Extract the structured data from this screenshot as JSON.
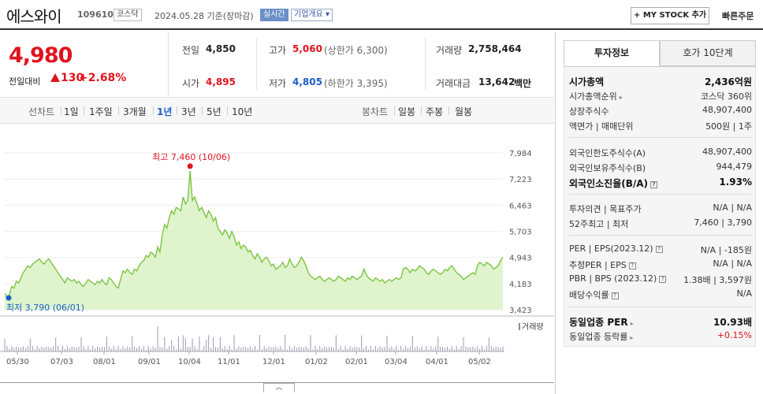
{
  "header": {
    "stock_name": "에스와이",
    "stock_code": "109610",
    "market": "코스닥",
    "date_text": "2024.05.28 기준(장마감)",
    "live_label": "실시간",
    "company_info_label": "기업개요",
    "my_stock_label": "+ MY STOCK 추가",
    "fast_order_label": "빠른주문"
  },
  "price": {
    "current": "4,980",
    "change_label": "전일대비",
    "change": "130",
    "change_pct": "+2.68%"
  },
  "quote": {
    "prev_label": "전일",
    "prev": "4,850",
    "open_label": "시가",
    "open": "4,895",
    "high_label": "고가",
    "high": "5,060",
    "upper_limit": "(상한가 6,300)",
    "low_label": "저가",
    "low": "4,805",
    "lower_limit": "(하한가 3,395)",
    "volume_label": "거래량",
    "volume": "2,758,464",
    "amount_label": "거래대금",
    "amount": "13,642",
    "amount_unit": "백만"
  },
  "period_bar": {
    "line_label": "선차트",
    "line_periods": [
      "1일",
      "1주일",
      "3개월",
      "1년",
      "3년",
      "5년",
      "10년"
    ],
    "selected": "1년",
    "candle_label": "봉차트",
    "candle_periods": [
      "일봉",
      "주봉",
      "월봉"
    ]
  },
  "chart_data": {
    "type": "area",
    "x_ticks": [
      "05/30",
      "07/03",
      "08/01",
      "09/01",
      "10/04",
      "11/01",
      "12/01",
      "01/02",
      "02/01",
      "03/04",
      "04/01",
      "05/02"
    ],
    "y_ticks": [
      7984,
      7223,
      6463,
      5703,
      4943,
      4183,
      3423
    ],
    "y_tick_labels": [
      "7,984",
      "7,223",
      "6,463",
      "5,703",
      "4,943",
      "4,183",
      "3,423"
    ],
    "ylim": [
      3423,
      7984
    ],
    "high_label": "최고 7,460 (10/06)",
    "low_label": "최저 3,790 (06/01)",
    "volume_label": "거래량",
    "colors": {
      "line": "#7dc443",
      "fill": "#d9f2c4",
      "high_marker": "#e0141e",
      "low_marker": "#1a5fc7"
    },
    "values": [
      3900,
      3800,
      3850,
      4100,
      4050,
      4250,
      4200,
      4350,
      4500,
      4600,
      4700,
      4650,
      4750,
      4800,
      4850,
      4900,
      4800,
      4750,
      4850,
      4900,
      4800,
      4700,
      4600,
      4500,
      4400,
      4300,
      4200,
      4350,
      4300,
      4250,
      4300,
      4200,
      4250,
      4150,
      4100,
      4200,
      4300,
      4250,
      4200,
      4150,
      4250,
      4200,
      4300,
      4200,
      4150,
      4350,
      4300,
      4200,
      4100,
      4050,
      4300,
      4550,
      4500,
      4600,
      4500,
      4450,
      4600,
      4550,
      4700,
      4800,
      4850,
      5000,
      4950,
      5100,
      5050,
      4950,
      5250,
      5100,
      5600,
      5900,
      5800,
      6100,
      6300,
      6200,
      6400,
      6350,
      6300,
      6700,
      6500,
      6600,
      7460,
      6600,
      6700,
      6500,
      6300,
      6400,
      6250,
      6100,
      6300,
      6200,
      6000,
      6100,
      5800,
      5700,
      5600,
      5750,
      5650,
      5500,
      5700,
      5550,
      5300,
      5400,
      5200,
      5300,
      5250,
      5100,
      5150,
      5000,
      4900,
      5050,
      4950,
      4800,
      4900,
      4950,
      4850,
      4700,
      4750,
      4600,
      4650,
      4700,
      4800,
      4650,
      4700,
      4900,
      4750,
      4650,
      4700,
      4800,
      4950,
      4850,
      4700,
      4500,
      4400,
      4350,
      4300,
      4350,
      4400,
      4300,
      4250,
      4300,
      4350,
      4300,
      4250,
      4300,
      4400,
      4350,
      4300,
      4250,
      4350,
      4300,
      4400,
      4350,
      4300,
      4350,
      4400,
      4600,
      4450,
      4350,
      4300,
      4250,
      4350,
      4300,
      4250,
      4300,
      4200,
      4250,
      4300,
      4250,
      4300,
      4350,
      4300,
      4350,
      4600,
      4650,
      4600,
      4500,
      4600,
      4550,
      4600,
      4700,
      4650,
      4600,
      4500,
      4450,
      4550,
      4600,
      4550,
      4500,
      4450,
      4500,
      4600,
      4550,
      4650,
      4700,
      4600,
      4500,
      4450,
      4400,
      4300,
      4350,
      4400,
      4450,
      4500,
      4450,
      4700,
      4800,
      4750,
      4700,
      4800,
      4750,
      4700,
      4600,
      4650,
      4700,
      4850,
      4950
    ]
  },
  "right_panel": {
    "tab_invest": "투자정보",
    "tab_orderbook": "호가 10단계",
    "market_cap_label": "시가총액",
    "market_cap": "2,436억원",
    "market_cap_rank_label": "시가총액순위",
    "market_cap_rank": "코스닥 360위",
    "shares_label": "상장주식수",
    "shares": "48,907,400",
    "face_label": "액면가 | 매매단위",
    "face": "500원 | 1주",
    "foreign_limit_label": "외국인한도주식수(A)",
    "foreign_limit": "48,907,400",
    "foreign_hold_label": "외국인보유주식수(B)",
    "foreign_hold": "944,479",
    "foreign_ratio_label": "외국인소진율(B/A)",
    "foreign_ratio": "1.93%",
    "opinion_label": "투자의견 | 목표주가",
    "opinion": "N/A | N/A",
    "w52_label": "52주최고 | 최저",
    "w52": "7,460 | 3,790",
    "per_label": "PER | EPS(2023.12)",
    "per": "N/A | -185원",
    "est_per_label": "추정PER | EPS",
    "est_per": "N/A | N/A",
    "pbr_label": "PBR | BPS (2023.12)",
    "pbr": "1.38배 | 3,597원",
    "dividend_label": "배당수익률",
    "dividend": "N/A",
    "sector_per_label": "동일업종 PER",
    "sector_per": "10.93배",
    "sector_chg_label": "동일업종 등락률",
    "sector_chg": "+0.15%"
  }
}
